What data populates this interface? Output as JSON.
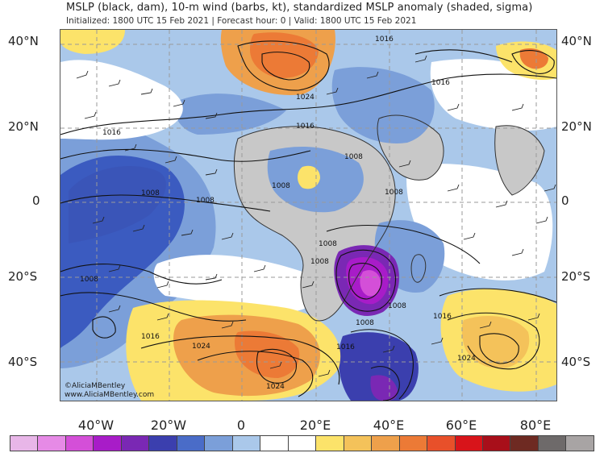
{
  "header": {
    "title": "MSLP (black, dam), 10-m wind (barbs, kt), standardized MSLP anomaly (shaded, sigma)",
    "subtitle": "Initialized: 1800 UTC 15 Feb 2021 | Forecast hour: 0 | Valid: 1800 UTC 15 Feb 2021"
  },
  "axes": {
    "lat_labels_left": [
      "40°N",
      "20°N",
      "0",
      "20°S",
      "40°S"
    ],
    "lat_labels_right": [
      "40°N",
      "20°N",
      "0",
      "20°S",
      "40°S"
    ],
    "lon_labels": [
      "40°W",
      "20°W",
      "0",
      "20°E",
      "40°E",
      "60°E",
      "80°E"
    ]
  },
  "contours": {
    "labels": [
      "1016",
      "1016",
      "1024",
      "1016",
      "1016",
      "1008",
      "1008",
      "1008",
      "1008",
      "1008",
      "1008",
      "1008",
      "1008",
      "1008",
      "1008",
      "1016",
      "1016",
      "1024",
      "1024",
      "1016",
      "1024"
    ]
  },
  "watermark": {
    "line1": "©AliciaMBentley",
    "line2": "www.AliciaMBentley.com"
  },
  "colorbar": {
    "colors": [
      "#e8b6e8",
      "#e68ae6",
      "#d44fd8",
      "#a81cc8",
      "#7a28b4",
      "#3b3fae",
      "#4a6cc8",
      "#7b9fd9",
      "#aac8ea",
      "#ffffff",
      "#ffffff",
      "#fce36a",
      "#f4c25a",
      "#eea04b",
      "#ec7a36",
      "#e8502a",
      "#d8141a",
      "#a80f1a",
      "#6e2a22",
      "#6e6a6a",
      "#a8a4a4"
    ]
  },
  "shading_colors": {
    "ocean_blue_light": "#aac8ea",
    "ocean_blue_mid": "#7b9fd9",
    "ocean_blue_dark": "#3b5bc0",
    "purple": "#8a2ad0",
    "purple_light": "#c86ae0",
    "yellow": "#fce36a",
    "orange_light": "#f4c25a",
    "orange": "#eea04b",
    "orange_dark": "#ec7a36",
    "land_gray": "#c8c8c8"
  }
}
